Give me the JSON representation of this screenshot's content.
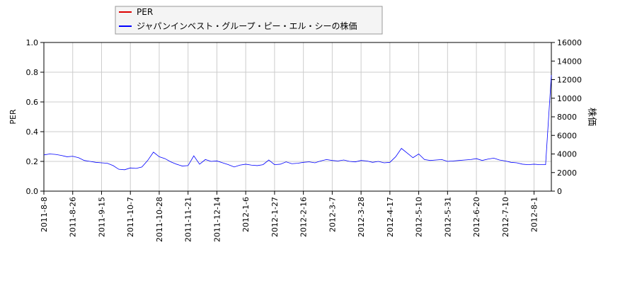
{
  "chart_data": {
    "type": "line",
    "categories": [
      "2011-8-8",
      null,
      null,
      null,
      null,
      "2011-8-26",
      null,
      null,
      null,
      null,
      "2011-9-15",
      null,
      null,
      null,
      null,
      "2011-10-7",
      null,
      null,
      null,
      null,
      "2011-10-28",
      null,
      null,
      null,
      null,
      "2011-11-21",
      null,
      null,
      null,
      null,
      "2011-12-14",
      null,
      null,
      null,
      null,
      "2012-1-6",
      null,
      null,
      null,
      null,
      "2012-1-27",
      null,
      null,
      null,
      null,
      "2012-2-16",
      null,
      null,
      null,
      null,
      "2012-3-7",
      null,
      null,
      null,
      null,
      "2012-3-28",
      null,
      null,
      null,
      null,
      "2012-4-17",
      null,
      null,
      null,
      null,
      "2012-5-10",
      null,
      null,
      null,
      null,
      "2012-5-31",
      null,
      null,
      null,
      null,
      "2012-6-20",
      null,
      null,
      null,
      null,
      "2012-7-10",
      null,
      null,
      null,
      null,
      "2012-8-1",
      null,
      null,
      null
    ],
    "ylabel": "PER",
    "y2label": "株価",
    "ylim": [
      0,
      1
    ],
    "yticks": [
      {
        "value": 0,
        "label": "0.0"
      },
      0.2,
      0.4,
      0.6,
      0.8,
      {
        "value": 1,
        "label": "1.0"
      }
    ],
    "y2lim": [
      0,
      16000
    ],
    "y2ticks": [
      0,
      2000,
      4000,
      6000,
      8000,
      10000,
      12000,
      14000,
      16000
    ],
    "grid": true,
    "series": [
      {
        "name": "PER",
        "color": "#dd0000",
        "values": [
          null,
          null,
          null,
          null,
          null,
          null,
          null,
          null,
          null,
          null,
          null,
          null,
          null,
          null,
          null,
          null,
          null,
          null,
          null,
          null,
          null,
          null,
          null,
          null,
          null,
          null,
          null,
          null,
          null,
          null,
          null,
          null,
          null,
          null,
          null,
          null,
          null,
          null,
          null,
          null,
          null,
          null,
          null,
          null,
          null,
          null,
          null,
          null,
          null,
          null,
          null,
          null,
          null,
          null,
          null,
          null,
          null,
          null,
          null,
          null,
          null,
          null,
          null,
          null,
          null,
          null,
          null,
          null,
          null,
          null,
          null,
          null,
          null,
          null,
          null,
          null,
          null,
          null,
          null,
          null,
          null,
          null,
          null,
          null,
          null,
          null,
          null,
          null,
          null
        ]
      },
      {
        "name": "ジャパンインベスト・グループ・ピー・エル・シーの株価",
        "color": "#0000ff",
        "axis": "y2",
        "values": [
          3900,
          4000,
          3950,
          3850,
          3700,
          3750,
          3600,
          3300,
          3200,
          3100,
          3050,
          3000,
          2750,
          2350,
          2300,
          2500,
          2450,
          2600,
          3300,
          4200,
          3700,
          3500,
          3150,
          2900,
          2700,
          2750,
          3800,
          2900,
          3400,
          3200,
          3250,
          3050,
          2850,
          2600,
          2800,
          2900,
          2800,
          2750,
          2850,
          3350,
          2850,
          2900,
          3150,
          2950,
          3000,
          3100,
          3150,
          3050,
          3250,
          3400,
          3300,
          3250,
          3350,
          3200,
          3150,
          3300,
          3250,
          3100,
          3200,
          3050,
          3100,
          3700,
          4600,
          4100,
          3600,
          4000,
          3400,
          3300,
          3350,
          3400,
          3200,
          3250,
          3300,
          3350,
          3400,
          3500,
          3300,
          3450,
          3550,
          3350,
          3250,
          3100,
          3050,
          2900,
          2850,
          2900,
          2850,
          2850,
          12500
        ]
      }
    ]
  }
}
